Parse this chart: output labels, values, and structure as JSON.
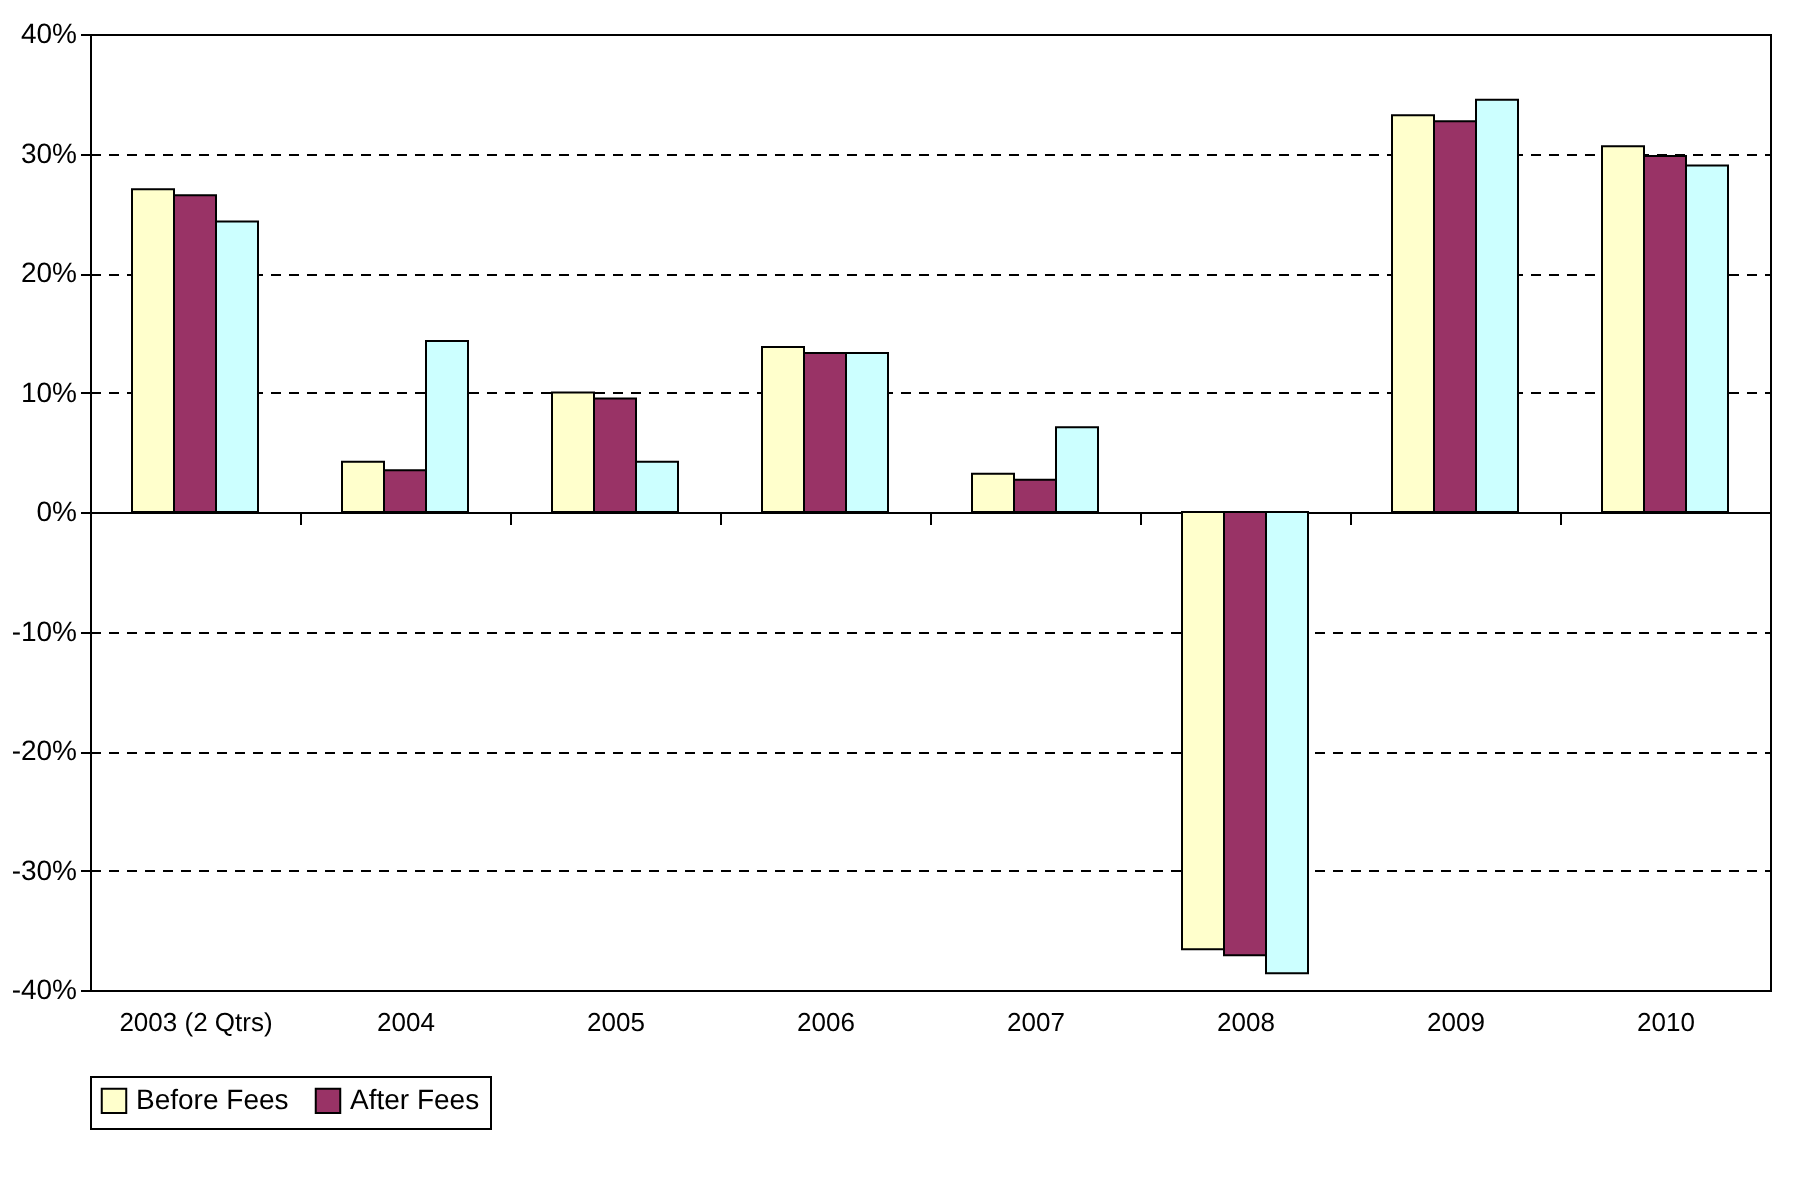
{
  "chart_data": {
    "type": "bar",
    "categories": [
      "2003 (2 Qtrs)",
      "2004",
      "2005",
      "2006",
      "2007",
      "2008",
      "2009",
      "2010"
    ],
    "series": [
      {
        "name": "Before Fees",
        "color": "#ffffcc",
        "values": [
          27,
          4.2,
          10,
          13.8,
          3.2,
          -36.6,
          33.2,
          30.6
        ]
      },
      {
        "name": "After Fees",
        "color": "#993366",
        "values": [
          26.5,
          3.5,
          9.5,
          13.3,
          2.7,
          -37.1,
          32.7,
          29.8
        ]
      },
      {
        "color": "#ccffff",
        "values": [
          24.3,
          14.3,
          4.2,
          13.3,
          7.1,
          -38.6,
          34.5,
          29.0
        ]
      }
    ],
    "ylim": [
      -40,
      40
    ],
    "yticks": [
      {
        "value": -40,
        "label": "-40%"
      },
      {
        "value": -30,
        "label": "-30%"
      },
      {
        "value": -20,
        "label": "-20%"
      },
      {
        "value": -10,
        "label": "-10%"
      },
      {
        "value": 0,
        "label": "0%"
      },
      {
        "value": 10,
        "label": "10%"
      },
      {
        "value": 20,
        "label": "20%"
      },
      {
        "value": 30,
        "label": "30%"
      },
      {
        "value": 40,
        "label": "40%"
      }
    ],
    "grid": "y",
    "legend": "bottom"
  }
}
